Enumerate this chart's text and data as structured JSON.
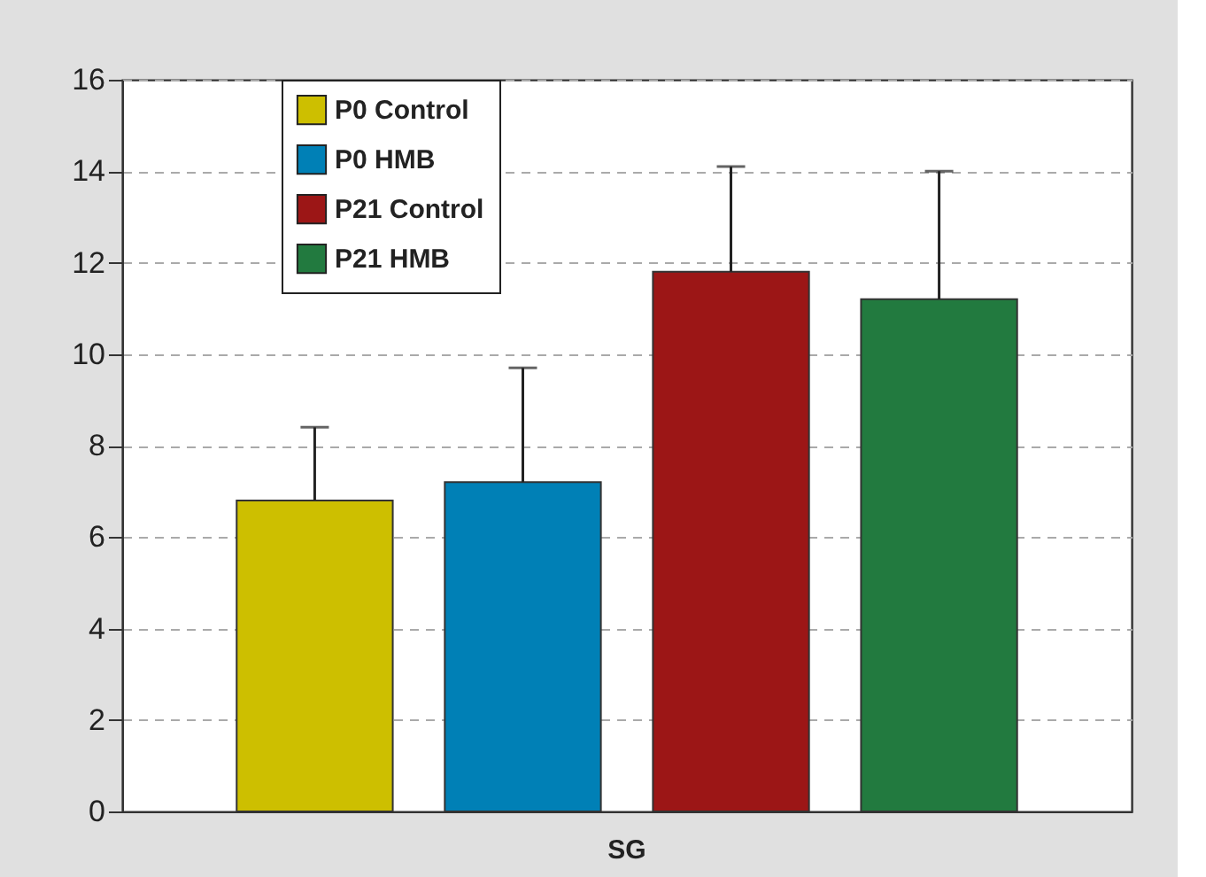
{
  "chart_data": {
    "type": "bar",
    "categories": [
      "SG"
    ],
    "series": [
      {
        "name": "P0 Control",
        "color": "#cdbf00",
        "values": [
          6.8
        ],
        "errors": [
          [
            6.8,
            8.4
          ]
        ]
      },
      {
        "name": "P0 HMB",
        "color": "#0080b6",
        "values": [
          7.2
        ],
        "errors": [
          [
            7.2,
            9.7
          ]
        ]
      },
      {
        "name": "P21 Control",
        "color": "#9c1616",
        "values": [
          11.8
        ],
        "errors": [
          [
            11.8,
            14.1
          ]
        ]
      },
      {
        "name": "P21 HMB",
        "color": "#227a3f",
        "values": [
          11.2
        ],
        "errors": [
          [
            11.2,
            14.0
          ]
        ]
      }
    ],
    "ylim": [
      0,
      16
    ],
    "yticks": [
      0,
      2,
      4,
      6,
      8,
      10,
      12,
      14,
      16
    ],
    "grid": "y",
    "legend": "top left"
  }
}
